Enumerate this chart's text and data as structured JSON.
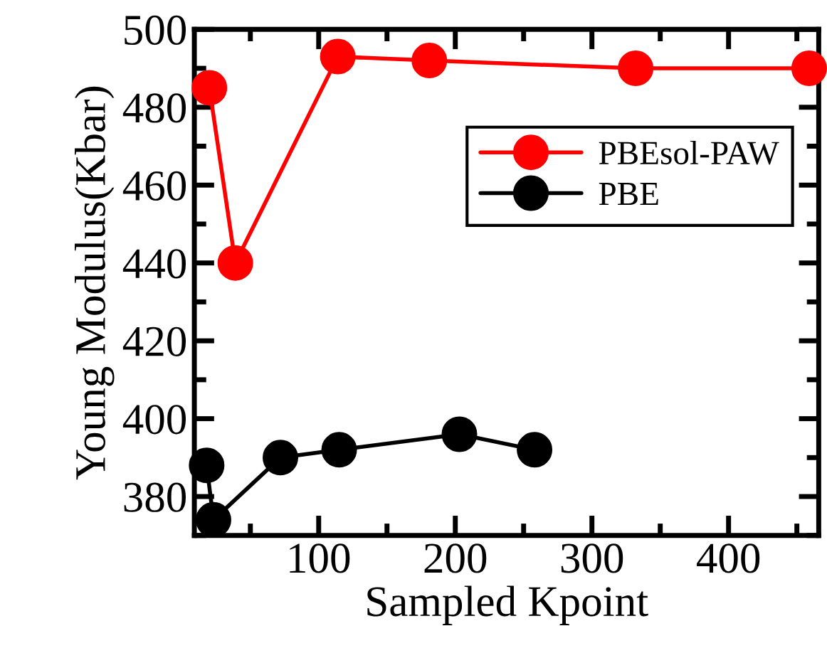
{
  "chart_data": {
    "type": "line",
    "xlabel": "Sampled Kpoint",
    "ylabel": "Young Modulus(Kbar)",
    "xlim": [
      9,
      466
    ],
    "xticks": [
      100,
      200,
      300,
      400
    ],
    "ylim": [
      370,
      500
    ],
    "yticks": [
      380,
      400,
      420,
      440,
      460,
      480,
      500
    ],
    "grid": false,
    "legend": "top right",
    "marker": "circle",
    "line_style": "solid",
    "series": [
      {
        "name": "PBEsol-PAW",
        "color": "#ff0000",
        "x": [
          20,
          39,
          114,
          181,
          332,
          459
        ],
        "values": [
          485,
          440,
          493,
          492,
          490,
          490
        ]
      },
      {
        "name": "PBE",
        "color": "#000000",
        "x": [
          18,
          23,
          72,
          115,
          203,
          258
        ],
        "values": [
          388,
          374,
          390,
          392,
          396,
          392
        ]
      }
    ]
  }
}
